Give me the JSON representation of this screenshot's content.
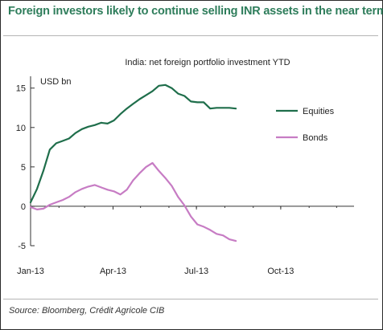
{
  "header": {
    "title": "Foreign investors likely to continue selling INR assets in the near term"
  },
  "footer": {
    "source": "Source: Bloomberg, Crédit Agricole CIB"
  },
  "colors": {
    "title": "#2e7d5b",
    "equities": "#1f6e4b",
    "bonds": "#c77cc4",
    "frame": "#2a2a2a"
  },
  "chart_data": {
    "type": "line",
    "title": "India: net foreign portfolio investment YTD",
    "ylabel": "USD bn",
    "xlabel": "",
    "x_ticks": [
      {
        "label": "Jan-13",
        "date": "2013-01-01"
      },
      {
        "label": "Apr-13",
        "date": "2013-04-01"
      },
      {
        "label": "Jul-13",
        "date": "2013-07-01"
      },
      {
        "label": "Oct-13",
        "date": "2013-10-01"
      }
    ],
    "xlim": [
      "2013-01-01",
      "2013-12-20"
    ],
    "y_ticks": [
      15,
      10,
      5,
      0,
      -5
    ],
    "y_tick_labels": [
      "15",
      "10",
      "5",
      "0",
      "-5"
    ],
    "ylim": [
      -5,
      16.5
    ],
    "grid": false,
    "legend": "right",
    "series": [
      {
        "name": "Equities",
        "color": "#1f6e4b",
        "x": [
          "2013-01-01",
          "2013-01-08",
          "2013-01-15",
          "2013-01-22",
          "2013-01-29",
          "2013-02-05",
          "2013-02-12",
          "2013-02-19",
          "2013-02-26",
          "2013-03-05",
          "2013-03-12",
          "2013-03-19",
          "2013-03-26",
          "2013-04-02",
          "2013-04-09",
          "2013-04-16",
          "2013-04-23",
          "2013-04-30",
          "2013-05-07",
          "2013-05-14",
          "2013-05-21",
          "2013-05-28",
          "2013-06-04",
          "2013-06-11",
          "2013-06-18",
          "2013-06-25",
          "2013-07-02",
          "2013-07-09",
          "2013-07-16",
          "2013-07-23",
          "2013-07-30",
          "2013-08-06",
          "2013-08-13"
        ],
        "values": [
          0.5,
          2.2,
          4.5,
          7.2,
          8.0,
          8.3,
          8.6,
          9.3,
          9.8,
          10.1,
          10.3,
          10.6,
          10.5,
          10.9,
          11.7,
          12.4,
          13.0,
          13.6,
          14.1,
          14.6,
          15.3,
          15.4,
          15.0,
          14.3,
          14.0,
          13.3,
          13.2,
          13.2,
          12.4,
          12.5,
          12.5,
          12.5,
          12.4
        ]
      },
      {
        "name": "Bonds",
        "color": "#c77cc4",
        "x": [
          "2013-01-01",
          "2013-01-08",
          "2013-01-15",
          "2013-01-22",
          "2013-01-29",
          "2013-02-05",
          "2013-02-12",
          "2013-02-19",
          "2013-02-26",
          "2013-03-05",
          "2013-03-12",
          "2013-03-19",
          "2013-03-26",
          "2013-04-02",
          "2013-04-09",
          "2013-04-16",
          "2013-04-23",
          "2013-04-30",
          "2013-05-07",
          "2013-05-14",
          "2013-05-21",
          "2013-05-28",
          "2013-06-04",
          "2013-06-11",
          "2013-06-18",
          "2013-06-25",
          "2013-07-02",
          "2013-07-09",
          "2013-07-16",
          "2013-07-23",
          "2013-07-30",
          "2013-08-06",
          "2013-08-13"
        ],
        "values": [
          -0.1,
          -0.4,
          -0.3,
          0.2,
          0.5,
          0.8,
          1.2,
          1.8,
          2.2,
          2.5,
          2.7,
          2.4,
          2.1,
          1.9,
          1.5,
          2.1,
          3.3,
          4.2,
          5.0,
          5.5,
          4.5,
          3.6,
          2.6,
          1.2,
          0.1,
          -1.3,
          -2.3,
          -2.6,
          -3.0,
          -3.5,
          -3.7,
          -4.2,
          -4.4
        ]
      }
    ]
  }
}
